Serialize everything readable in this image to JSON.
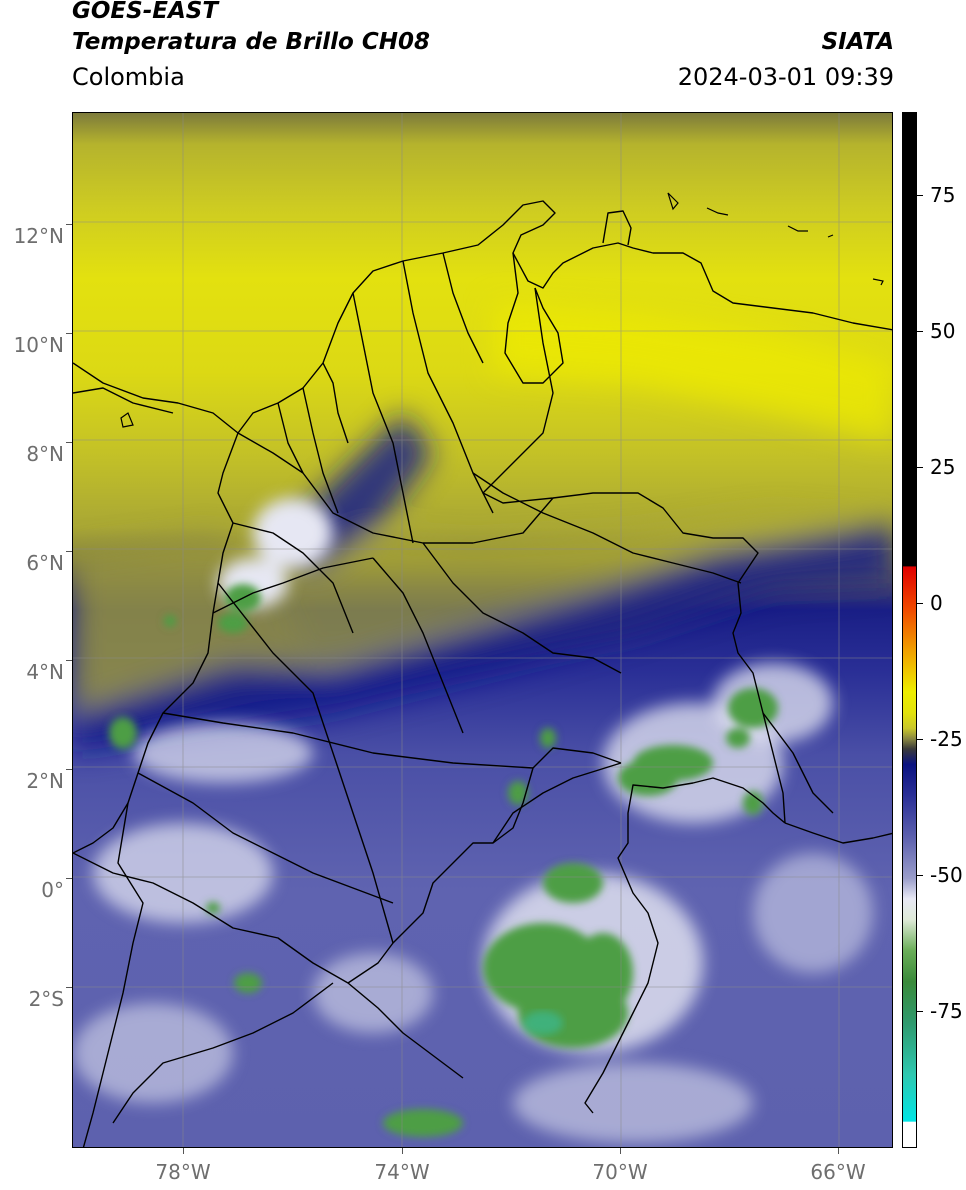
{
  "header": {
    "satellite": "GOES-EAST",
    "product": "Temperatura de Brillo CH08",
    "region": "Colombia",
    "agency": "SIATA",
    "datetime": "2024-03-01 09:39"
  },
  "map": {
    "lon_range": [
      -80,
      -65
    ],
    "lat_range": [
      -5,
      14
    ],
    "lat_ticks": [
      "12°N",
      "10°N",
      "8°N",
      "6°N",
      "4°N",
      "2°N",
      "0°",
      "2°S"
    ],
    "lon_ticks": [
      "78°W",
      "74°W",
      "70°W",
      "66°W"
    ],
    "gridlines": true,
    "colors": {
      "warm_yellow": "#e6e30c",
      "olive": "#a4a235",
      "deep_blue": "#141b8a",
      "mid_blue": "#5a5fae",
      "pale": "#d6d8ec",
      "green": "#4e9e45",
      "teal": "#34c1a8"
    }
  },
  "colorbar": {
    "unit_label": "",
    "range": [
      -100,
      90
    ],
    "tick_labels": [
      "75",
      "50",
      "25",
      "0",
      "-25",
      "-50",
      "-75"
    ],
    "tick_values": [
      75,
      50,
      25,
      0,
      -25,
      -50,
      -75
    ]
  }
}
